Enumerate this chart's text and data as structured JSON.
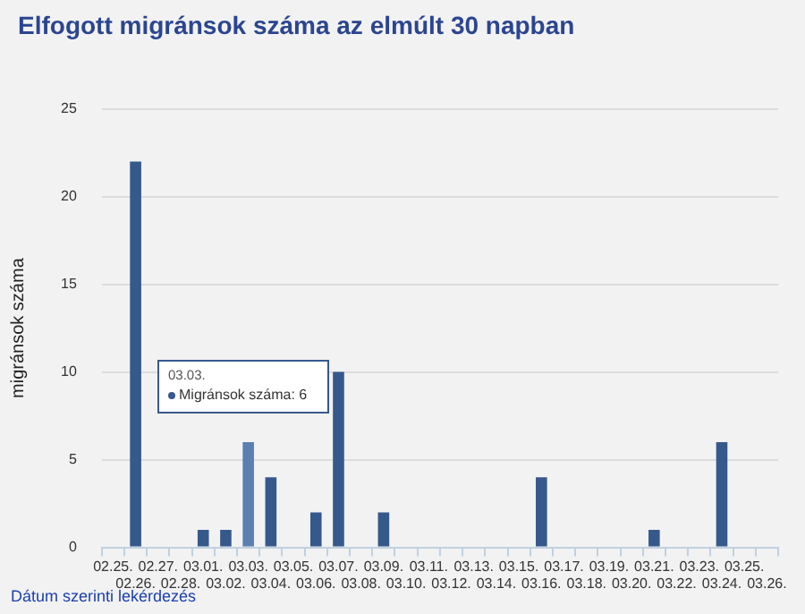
{
  "chart_data": {
    "type": "bar",
    "title": "Elfogott migránsok száma az elmúlt 30 napban",
    "ylabel": "migránsok száma",
    "categories": [
      "02.25.",
      "02.26.",
      "02.27.",
      "02.28.",
      "03.01.",
      "03.02.",
      "03.03.",
      "03.04.",
      "03.05.",
      "03.06.",
      "03.07.",
      "03.08.",
      "03.09.",
      "03.10.",
      "03.11.",
      "03.12.",
      "03.13.",
      "03.14.",
      "03.15.",
      "03.16.",
      "03.17.",
      "03.18.",
      "03.19.",
      "03.20.",
      "03.21.",
      "03.22.",
      "03.23.",
      "03.24.",
      "03.25.",
      "03.26."
    ],
    "series": [
      {
        "color": "#36598c",
        "colors": [
          "#36598c",
          "#36598c",
          "#36598c",
          "#36598c",
          "#36598c",
          "#36598c",
          "#5b7fb0",
          "#36598c",
          "#36598c",
          "#36598c",
          "#36598c",
          "#36598c",
          "#36598c",
          "#36598c",
          "#36598c",
          "#36598c",
          "#36598c",
          "#36598c",
          "#36598c",
          "#36598c",
          "#36598c",
          "#36598c",
          "#36598c",
          "#36598c",
          "#36598c",
          "#36598c",
          "#36598c",
          "#36598c",
          "#36598c",
          "#36598c"
        ],
        "values": [
          0,
          22,
          0,
          0,
          1,
          1,
          6,
          4,
          0,
          2,
          10,
          0,
          2,
          0,
          0,
          0,
          0,
          0,
          0,
          4,
          0,
          0,
          0,
          0,
          1,
          0,
          0,
          6,
          0,
          0
        ]
      }
    ],
    "ylim": [
      0,
      25
    ],
    "yticks": [
      0,
      5,
      10,
      15,
      20,
      25
    ],
    "grid": "y",
    "legend": false,
    "annotations": [
      "03.03.",
      "Migránsok száma: 6",
      "Dátum szerinti lekérdezés"
    ]
  }
}
